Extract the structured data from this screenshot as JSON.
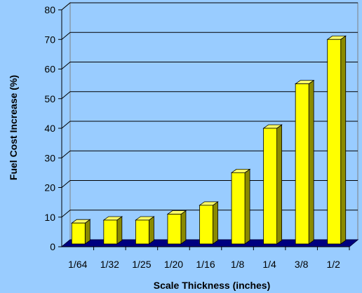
{
  "colors": {
    "background": "#99ccff",
    "plot_wall": "#99ccff",
    "floor": "#000080",
    "bar_front": "#ffff00",
    "bar_side": "#8a8a00",
    "bar_top": "#ffff66",
    "gridline": "#000000"
  },
  "chart_data": {
    "type": "bar",
    "title": "",
    "xlabel": "Scale Thickness (inches)",
    "ylabel": "Fuel Cost Increase (%)",
    "categories": [
      "1/64",
      "1/32",
      "1/25",
      "1/20",
      "1/16",
      "1/8",
      "1/4",
      "3/8",
      "1/2"
    ],
    "values": [
      8,
      9,
      9,
      11,
      14,
      25,
      40,
      55,
      70
    ],
    "ylim": [
      0,
      80
    ],
    "yticks": [
      0,
      10,
      20,
      30,
      40,
      50,
      60,
      70,
      80
    ],
    "grid": true,
    "legend": "none",
    "style": "3d-column"
  }
}
